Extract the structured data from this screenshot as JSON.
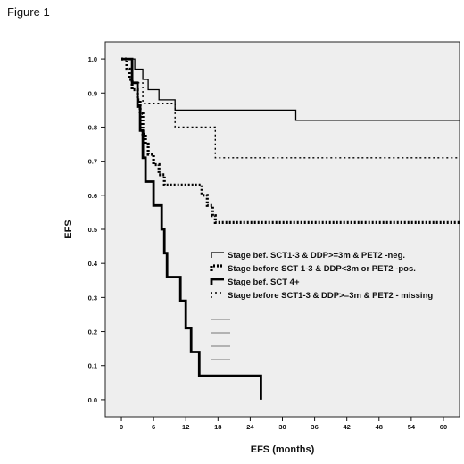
{
  "figure_label": "Figure 1",
  "chart_data": {
    "type": "line",
    "subtype": "kaplan-meier step curves",
    "title": "",
    "xlabel": "EFS (months)",
    "ylabel": "EFS",
    "xlim": [
      -3,
      63
    ],
    "ylim": [
      -0.05,
      1.05
    ],
    "x_ticks": [
      0,
      6,
      12,
      18,
      24,
      30,
      36,
      42,
      48,
      54,
      60
    ],
    "y_ticks": [
      0.0,
      0.1,
      0.2,
      0.3,
      0.4,
      0.5,
      0.6,
      0.7,
      0.8,
      0.9,
      1.0
    ],
    "x_tick_labels": [
      "0",
      "6",
      "12",
      "18",
      "24",
      "30",
      "36",
      "42",
      "48",
      "54",
      "60"
    ],
    "y_tick_labels": [
      "0.0",
      "0.1",
      "0.2",
      "0.3",
      "0.4",
      "0.5",
      "0.6",
      "0.7",
      "0.8",
      "0.9",
      "1.0"
    ],
    "plot_background": "#eeeeee",
    "grid": false,
    "legend_position": "center-right",
    "series": [
      {
        "name": "Stage bef. SCT1-3 & DDP>=3m & PET2 -neg.",
        "style": "thin-solid",
        "color": "#000000",
        "points": [
          [
            0,
            1.0
          ],
          [
            2.5,
            1.0
          ],
          [
            2.5,
            0.97
          ],
          [
            4,
            0.97
          ],
          [
            4,
            0.94
          ],
          [
            5,
            0.94
          ],
          [
            5,
            0.91
          ],
          [
            7,
            0.91
          ],
          [
            7,
            0.88
          ],
          [
            10,
            0.88
          ],
          [
            10,
            0.85
          ],
          [
            32.5,
            0.85
          ],
          [
            32.5,
            0.82
          ],
          [
            63,
            0.82
          ]
        ]
      },
      {
        "name": "Stage before SCT 1-3 & DDP<3m or PET2 -pos.",
        "style": "thick-dotted",
        "color": "#000000",
        "points": [
          [
            0,
            1.0
          ],
          [
            1,
            1.0
          ],
          [
            1,
            0.97
          ],
          [
            1.5,
            0.97
          ],
          [
            1.5,
            0.94
          ],
          [
            2,
            0.94
          ],
          [
            2,
            0.91
          ],
          [
            3,
            0.91
          ],
          [
            3,
            0.88
          ],
          [
            3.5,
            0.88
          ],
          [
            3.5,
            0.84
          ],
          [
            4,
            0.84
          ],
          [
            4,
            0.78
          ],
          [
            4.5,
            0.78
          ],
          [
            4.5,
            0.75
          ],
          [
            5,
            0.75
          ],
          [
            5,
            0.72
          ],
          [
            6,
            0.72
          ],
          [
            6,
            0.69
          ],
          [
            7,
            0.69
          ],
          [
            7,
            0.66
          ],
          [
            8,
            0.66
          ],
          [
            8,
            0.63
          ],
          [
            15,
            0.63
          ],
          [
            15,
            0.6
          ],
          [
            16,
            0.6
          ],
          [
            16,
            0.57
          ],
          [
            17,
            0.57
          ],
          [
            17,
            0.54
          ],
          [
            17.5,
            0.54
          ],
          [
            17.5,
            0.52
          ],
          [
            63,
            0.52
          ]
        ]
      },
      {
        "name": "Stage bef. SCT 4+",
        "style": "thick-solid",
        "color": "#000000",
        "points": [
          [
            0,
            1.0
          ],
          [
            2,
            1.0
          ],
          [
            2,
            0.93
          ],
          [
            3,
            0.93
          ],
          [
            3,
            0.86
          ],
          [
            3.5,
            0.86
          ],
          [
            3.5,
            0.79
          ],
          [
            4,
            0.79
          ],
          [
            4,
            0.71
          ],
          [
            4.5,
            0.71
          ],
          [
            4.5,
            0.64
          ],
          [
            6,
            0.64
          ],
          [
            6,
            0.57
          ],
          [
            7.5,
            0.57
          ],
          [
            7.5,
            0.5
          ],
          [
            8,
            0.5
          ],
          [
            8,
            0.43
          ],
          [
            8.5,
            0.43
          ],
          [
            8.5,
            0.36
          ],
          [
            11,
            0.36
          ],
          [
            11,
            0.29
          ],
          [
            12,
            0.29
          ],
          [
            12,
            0.21
          ],
          [
            13,
            0.21
          ],
          [
            13,
            0.14
          ],
          [
            14.5,
            0.14
          ],
          [
            14.5,
            0.07
          ],
          [
            26,
            0.07
          ],
          [
            26,
            0.0
          ]
        ]
      },
      {
        "name": "Stage before SCT1-3 & DDP>=3m & PET2 - missing",
        "style": "thin-dotted",
        "color": "#000000",
        "points": [
          [
            0,
            1.0
          ],
          [
            2,
            1.0
          ],
          [
            2,
            0.93
          ],
          [
            4,
            0.93
          ],
          [
            4,
            0.87
          ],
          [
            10,
            0.87
          ],
          [
            10,
            0.8
          ],
          [
            17.5,
            0.8
          ],
          [
            17.5,
            0.71
          ],
          [
            63,
            0.71
          ]
        ]
      }
    ]
  }
}
